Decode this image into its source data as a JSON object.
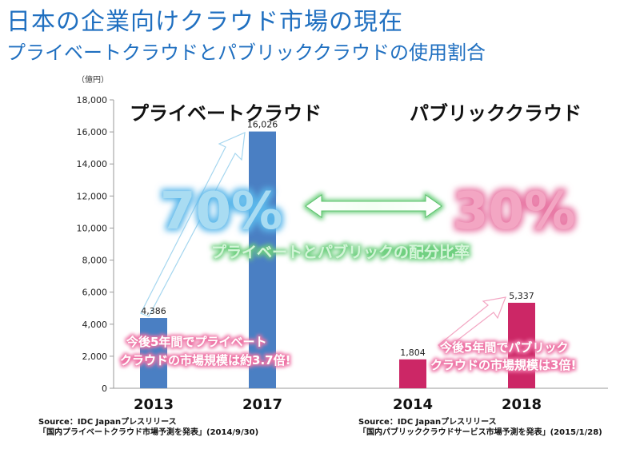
{
  "header": {
    "title": "日本の企業向けクラウド市場の現在",
    "subtitle": "プライベートクラウドとパブリッククラウドの使用割合"
  },
  "chart_data": {
    "type": "bar",
    "unit_label": "（億円）",
    "ylim": [
      0,
      18000
    ],
    "yticks": [
      "18,000",
      "16,000",
      "14,000",
      "12,000",
      "10,000",
      "8,000",
      "6,000",
      "4,000",
      "2,000",
      "0"
    ],
    "groups": [
      {
        "name": "プライベートクラウド",
        "color": "#4a7fc3",
        "categories": [
          "2013",
          "2017"
        ],
        "values": [
          4386,
          16026
        ],
        "value_labels": [
          "4,386",
          "16,026"
        ],
        "note_line1": "今後5年間でプライベート",
        "note_line2": "クラウドの市場規模は約3.7倍!"
      },
      {
        "name": "パブリッククラウド",
        "color": "#cc2766",
        "categories": [
          "2014",
          "2018"
        ],
        "values": [
          1804,
          5337
        ],
        "value_labels": [
          "1,804",
          "5,337"
        ],
        "note_line1": "今後5年間でパブリック",
        "note_line2": "クラウドの市場規模は3倍!"
      }
    ],
    "ratio": {
      "private": "70%",
      "public": "30%",
      "label": "プライベートとパブリックの配分比率"
    }
  },
  "sources": [
    {
      "line1": "Source：IDC Japanプレスリリース",
      "line2": "「国内プライベートクラウド市場予測を発表」(2014/9/30)"
    },
    {
      "line1": "Source：IDC Japanプレスリリース",
      "line2": "「国内パブリッククラウドサービス市場予測を発表」(2015/1/28)"
    }
  ],
  "colors": {
    "title": "#1f6fc0",
    "private_bar": "#4a7fc3",
    "public_bar": "#cc2766",
    "ratio_private": "#a9dcf2",
    "ratio_public": "#f3a6c3",
    "ratio_label": "#9be0a6"
  }
}
